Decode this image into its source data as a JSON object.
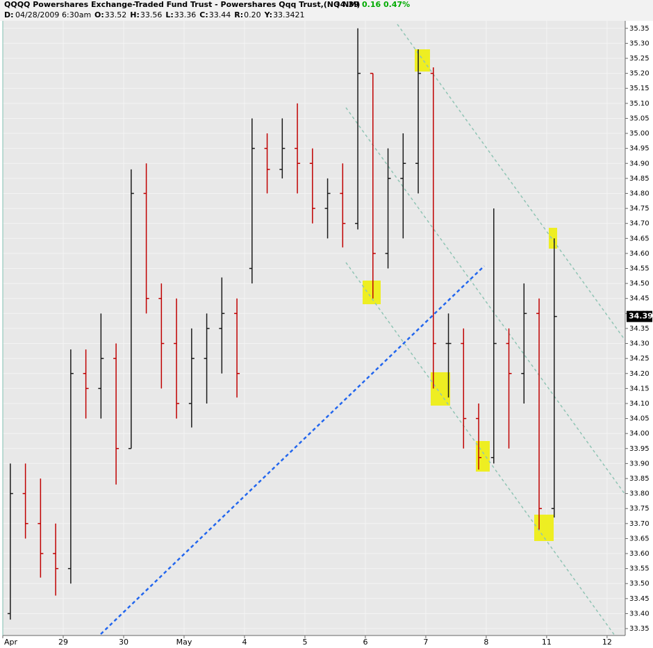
{
  "header": {
    "symbol_line": "QQQQ Powershares Exchange-Traded Fund Trust - Powershares Qqq Trust,(NQ NM)",
    "last": "34.39",
    "change": "0.16",
    "change_pct": "0.47%",
    "date_label": "D:",
    "date": "04/28/2009",
    "time": "6:30am",
    "fields": [
      {
        "label": "O:",
        "value": "33.52"
      },
      {
        "label": "H:",
        "value": "33.56"
      },
      {
        "label": "L:",
        "value": "33.36"
      },
      {
        "label": "C:",
        "value": "33.44"
      },
      {
        "label": "R:",
        "value": "0.20"
      },
      {
        "label": "Y:",
        "value": "33.3421"
      }
    ]
  },
  "chart_data": {
    "type": "ohlc",
    "up_color": "#1a1a1a",
    "down_color": "#c00000",
    "grid": true,
    "x": [
      0.125,
      0.375,
      0.625,
      0.875,
      1.125,
      1.375,
      1.625,
      1.875,
      2.125,
      2.375,
      2.625,
      2.875,
      3.125,
      3.375,
      3.625,
      3.875,
      4.125,
      4.375,
      4.625,
      4.875,
      5.125,
      5.375,
      5.625,
      5.875,
      6.125,
      6.375,
      6.625,
      6.875,
      7.125,
      7.375,
      7.625,
      7.875,
      8.125,
      8.375,
      8.625,
      8.875,
      9.125
    ],
    "open": [
      33.4,
      33.8,
      33.7,
      33.6,
      33.55,
      34.2,
      34.15,
      34.25,
      33.95,
      34.8,
      34.45,
      34.3,
      34.1,
      34.25,
      34.35,
      34.4,
      34.55,
      34.95,
      34.88,
      34.95,
      34.9,
      34.75,
      34.8,
      34.7,
      35.2,
      34.6,
      34.85,
      34.9,
      35.2,
      34.3,
      34.3,
      34.05,
      33.92,
      34.3,
      34.2,
      34.4,
      33.75
    ],
    "high": [
      33.9,
      33.9,
      33.85,
      33.7,
      34.28,
      34.28,
      34.4,
      34.3,
      34.88,
      34.9,
      34.5,
      34.45,
      34.35,
      34.4,
      34.52,
      34.45,
      35.05,
      35.0,
      35.05,
      35.1,
      34.95,
      34.85,
      34.9,
      35.35,
      35.2,
      34.95,
      35.0,
      35.28,
      35.22,
      34.4,
      34.35,
      34.1,
      34.75,
      34.35,
      34.5,
      34.45,
      34.65
    ],
    "low": [
      33.38,
      33.65,
      33.52,
      33.46,
      33.5,
      34.05,
      34.05,
      33.83,
      33.95,
      34.4,
      34.15,
      34.05,
      34.02,
      34.1,
      34.2,
      34.12,
      34.5,
      34.8,
      34.85,
      34.8,
      34.7,
      34.65,
      34.62,
      34.68,
      34.45,
      34.55,
      34.65,
      34.8,
      34.15,
      34.12,
      33.95,
      33.88,
      33.9,
      33.95,
      34.1,
      33.68,
      33.72
    ],
    "close": [
      33.8,
      33.7,
      33.6,
      33.55,
      34.2,
      34.15,
      34.25,
      33.95,
      34.8,
      34.45,
      34.3,
      34.1,
      34.25,
      34.35,
      34.4,
      34.2,
      34.95,
      34.88,
      34.95,
      34.9,
      34.75,
      34.8,
      34.7,
      35.2,
      34.6,
      34.85,
      34.9,
      35.2,
      34.3,
      34.3,
      34.05,
      33.92,
      34.3,
      34.2,
      34.4,
      33.75,
      34.39
    ],
    "last_value": 34.39,
    "xlim": [
      0,
      10.3
    ],
    "xticks": [
      {
        "value": 0,
        "label": "Apr"
      },
      {
        "value": 1,
        "label": "29"
      },
      {
        "value": 2,
        "label": "30"
      },
      {
        "value": 3,
        "label": "May"
      },
      {
        "value": 4,
        "label": "4"
      },
      {
        "value": 5,
        "label": "5"
      },
      {
        "value": 6,
        "label": "6"
      },
      {
        "value": 7,
        "label": "7"
      },
      {
        "value": 8,
        "label": "8"
      },
      {
        "value": 9,
        "label": "11"
      },
      {
        "value": 10,
        "label": "12"
      }
    ],
    "ylim": [
      33.327,
      35.375
    ],
    "yticks": [
      {
        "value": 33.35,
        "label": "33.35"
      },
      {
        "value": 33.4,
        "label": "33.40"
      },
      {
        "value": 33.45,
        "label": "33.45"
      },
      {
        "value": 33.5,
        "label": "33.50"
      },
      {
        "value": 33.55,
        "label": "33.55"
      },
      {
        "value": 33.6,
        "label": "33.60"
      },
      {
        "value": 33.65,
        "label": "33.65"
      },
      {
        "value": 33.7,
        "label": "33.70"
      },
      {
        "value": 33.75,
        "label": "33.75"
      },
      {
        "value": 33.8,
        "label": "33.80"
      },
      {
        "value": 33.85,
        "label": "33.85"
      },
      {
        "value": 33.9,
        "label": "33.90"
      },
      {
        "value": 33.95,
        "label": "33.95"
      },
      {
        "value": 34.0,
        "label": "34.00"
      },
      {
        "value": 34.05,
        "label": "34.05"
      },
      {
        "value": 34.1,
        "label": "34.10"
      },
      {
        "value": 34.15,
        "label": "34.15"
      },
      {
        "value": 34.2,
        "label": "34.20"
      },
      {
        "value": 34.25,
        "label": "34.25"
      },
      {
        "value": 34.3,
        "label": "34.30"
      },
      {
        "value": 34.35,
        "label": "34.35"
      },
      {
        "value": 34.4,
        "label": "34.40"
      },
      {
        "value": 34.45,
        "label": "34.45"
      },
      {
        "value": 34.5,
        "label": "34.50"
      },
      {
        "value": 34.55,
        "label": "34.55"
      },
      {
        "value": 34.6,
        "label": "34.60"
      },
      {
        "value": 34.65,
        "label": "34.65"
      },
      {
        "value": 34.7,
        "label": "34.70"
      },
      {
        "value": 34.75,
        "label": "34.75"
      },
      {
        "value": 34.8,
        "label": "34.80"
      },
      {
        "value": 34.85,
        "label": "34.85"
      },
      {
        "value": 34.9,
        "label": "34.90"
      },
      {
        "value": 34.95,
        "label": "34.95"
      },
      {
        "value": 35.0,
        "label": "35.00"
      },
      {
        "value": 35.05,
        "label": "35.05"
      },
      {
        "value": 35.1,
        "label": "35.10"
      },
      {
        "value": 35.15,
        "label": "35.15"
      },
      {
        "value": 35.2,
        "label": "35.20"
      },
      {
        "value": 35.25,
        "label": "35.25"
      },
      {
        "value": 35.3,
        "label": "35.30"
      },
      {
        "value": 35.35,
        "label": "35.35"
      }
    ]
  }
}
